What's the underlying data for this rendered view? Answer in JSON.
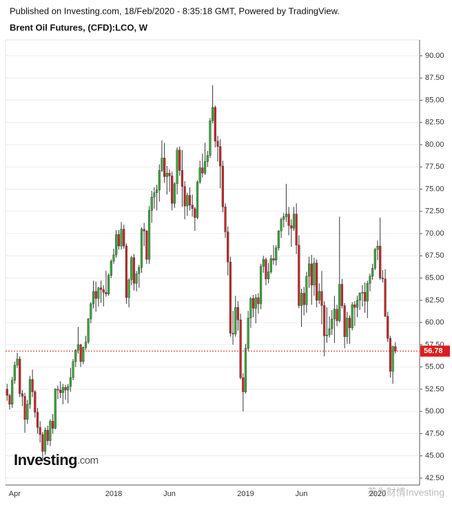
{
  "chart_data": {
    "type": "candlestick",
    "published": "Published on Investing.com, 18/Feb/2020 - 8:35:18 GMT, Powered by TradingView.",
    "title": "Brent Oil Futures, (CFD):LCO, W",
    "logo_text": "Investing",
    "logo_suffix": ".com",
    "watermark": "英为财情Investing",
    "up_color": "#3aa83a",
    "down_color": "#c62828",
    "last_price": 56.78,
    "last_price_color": "#e01b1b",
    "grid": true,
    "ylim": [
      41.72,
      91.78
    ],
    "yticks": [
      {
        "value": 42.5,
        "label": "42.50"
      },
      {
        "value": 45,
        "label": "45.00"
      },
      {
        "value": 47.5,
        "label": "47.50"
      },
      {
        "value": 50,
        "label": "50.00"
      },
      {
        "value": 52.5,
        "label": "52.50"
      },
      {
        "value": 55,
        "label": "55.00"
      },
      {
        "value": 57.5,
        "label": "57.50"
      },
      {
        "value": 60,
        "label": "60.00"
      },
      {
        "value": 62.5,
        "label": "62.50"
      },
      {
        "value": 65,
        "label": "65.00"
      },
      {
        "value": 67.5,
        "label": "67.50"
      },
      {
        "value": 70,
        "label": "70.00"
      },
      {
        "value": 72.5,
        "label": "72.50"
      },
      {
        "value": 75,
        "label": "75.00"
      },
      {
        "value": 77.5,
        "label": "77.50"
      },
      {
        "value": 80,
        "label": "80.00"
      },
      {
        "value": 82.5,
        "label": "82.50"
      },
      {
        "value": 85,
        "label": "85.00"
      },
      {
        "value": 87.5,
        "label": "87.50"
      },
      {
        "value": 90,
        "label": "90.00"
      }
    ],
    "categories": [
      null,
      null,
      null,
      "Apr",
      null,
      null,
      null,
      null,
      null,
      null,
      null,
      null,
      null,
      null,
      null,
      null,
      null,
      null,
      null,
      null,
      null,
      null,
      null,
      null,
      null,
      null,
      null,
      null,
      null,
      null,
      null,
      null,
      null,
      null,
      null,
      null,
      null,
      null,
      null,
      null,
      null,
      null,
      "2018",
      null,
      null,
      null,
      null,
      null,
      null,
      null,
      null,
      null,
      null,
      null,
      null,
      null,
      null,
      null,
      null,
      null,
      null,
      null,
      null,
      null,
      "Jun",
      null,
      null,
      null,
      null,
      null,
      null,
      null,
      null,
      null,
      null,
      null,
      null,
      null,
      null,
      null,
      null,
      null,
      null,
      null,
      null,
      null,
      null,
      null,
      null,
      null,
      null,
      null,
      null,
      null,
      "2019",
      null,
      null,
      null,
      null,
      null,
      null,
      null,
      null,
      null,
      null,
      null,
      null,
      null,
      null,
      null,
      null,
      null,
      null,
      null,
      null,
      null,
      "Jun",
      null,
      null,
      null,
      null,
      null,
      null,
      null,
      null,
      null,
      null,
      null,
      null,
      null,
      null,
      null,
      null,
      null,
      null,
      null,
      null,
      null,
      null,
      null,
      null,
      null,
      null,
      null,
      null,
      null,
      "2020",
      null,
      null,
      null,
      null,
      null,
      null,
      null
    ],
    "candles": [
      [
        52.5,
        53.1,
        51.2,
        51.8
      ],
      [
        51.8,
        52.0,
        50.2,
        50.8
      ],
      [
        50.8,
        53.9,
        50.4,
        53.5
      ],
      [
        53.5,
        55.6,
        53.1,
        55.2
      ],
      [
        55.2,
        56.6,
        54.9,
        55.9
      ],
      [
        55.9,
        56.2,
        51.6,
        52.0
      ],
      [
        52.0,
        52.4,
        50.6,
        51.7
      ],
      [
        51.7,
        52.1,
        47.6,
        49.1
      ],
      [
        49.1,
        51.3,
        48.6,
        50.8
      ],
      [
        50.8,
        54.0,
        50.3,
        53.6
      ],
      [
        53.6,
        54.7,
        51.6,
        52.2
      ],
      [
        52.2,
        52.4,
        49.3,
        49.9
      ],
      [
        49.9,
        50.4,
        47.5,
        48.2
      ],
      [
        48.2,
        48.9,
        46.5,
        47.4
      ],
      [
        47.4,
        47.7,
        44.4,
        45.5
      ],
      [
        45.5,
        48.2,
        45.1,
        47.9
      ],
      [
        47.9,
        48.4,
        46.2,
        46.7
      ],
      [
        46.7,
        49.1,
        46.1,
        48.9
      ],
      [
        48.9,
        49.7,
        47.5,
        48.1
      ],
      [
        48.1,
        52.6,
        48.0,
        52.5
      ],
      [
        52.5,
        52.9,
        51.4,
        52.4
      ],
      [
        52.4,
        53.4,
        51.5,
        52.1
      ],
      [
        52.1,
        53.1,
        50.8,
        52.7
      ],
      [
        52.7,
        53.0,
        51.3,
        52.4
      ],
      [
        52.4,
        53.1,
        50.9,
        52.8
      ],
      [
        52.8,
        54.9,
        52.2,
        53.8
      ],
      [
        53.8,
        55.9,
        53.5,
        55.6
      ],
      [
        55.6,
        57.0,
        55.0,
        56.9
      ],
      [
        56.9,
        59.5,
        56.5,
        57.5
      ],
      [
        57.5,
        57.6,
        55.0,
        55.6
      ],
      [
        55.6,
        57.3,
        55.3,
        57.2
      ],
      [
        57.2,
        58.5,
        56.9,
        57.8
      ],
      [
        57.8,
        60.5,
        57.6,
        60.4
      ],
      [
        60.4,
        62.3,
        59.9,
        62.1
      ],
      [
        62.1,
        64.7,
        61.6,
        63.5
      ],
      [
        63.5,
        64.6,
        61.2,
        62.7
      ],
      [
        62.7,
        64.0,
        61.8,
        63.9
      ],
      [
        63.9,
        64.7,
        62.2,
        63.7
      ],
      [
        63.7,
        64.2,
        61.8,
        63.4
      ],
      [
        63.4,
        65.8,
        62.9,
        63.2
      ],
      [
        63.2,
        65.5,
        63.0,
        65.3
      ],
      [
        65.3,
        67.1,
        65.0,
        66.9
      ],
      [
        66.9,
        68.3,
        66.6,
        67.6
      ],
      [
        67.6,
        70.4,
        67.3,
        69.9
      ],
      [
        69.9,
        70.4,
        68.2,
        68.6
      ],
      [
        68.6,
        71.3,
        68.2,
        70.5
      ],
      [
        70.5,
        71.0,
        68.3,
        68.6
      ],
      [
        68.6,
        68.9,
        62.1,
        62.8
      ],
      [
        62.8,
        65.0,
        61.7,
        64.8
      ],
      [
        64.8,
        67.5,
        64.2,
        67.3
      ],
      [
        67.3,
        67.7,
        63.6,
        64.4
      ],
      [
        64.4,
        65.8,
        63.5,
        65.5
      ],
      [
        65.5,
        66.5,
        63.9,
        66.2
      ],
      [
        66.2,
        70.7,
        65.6,
        70.5
      ],
      [
        70.5,
        71.2,
        68.6,
        70.3
      ],
      [
        70.3,
        70.4,
        66.6,
        67.1
      ],
      [
        67.1,
        73.1,
        66.6,
        72.6
      ],
      [
        72.6,
        74.8,
        71.2,
        74.1
      ],
      [
        74.1,
        75.2,
        72.8,
        74.6
      ],
      [
        74.6,
        75.5,
        72.6,
        74.9
      ],
      [
        74.9,
        77.8,
        73.6,
        77.1
      ],
      [
        77.1,
        80.5,
        76.9,
        78.5
      ],
      [
        78.5,
        80.2,
        75.7,
        76.4
      ],
      [
        76.4,
        77.6,
        74.4,
        76.8
      ],
      [
        76.8,
        77.2,
        74.7,
        76.5
      ],
      [
        76.5,
        77.0,
        72.6,
        73.4
      ],
      [
        73.4,
        75.8,
        72.9,
        75.6
      ],
      [
        75.6,
        79.7,
        74.4,
        79.4
      ],
      [
        79.4,
        79.8,
        76.5,
        77.1
      ],
      [
        77.1,
        79.4,
        73.0,
        75.3
      ],
      [
        75.3,
        75.9,
        71.6,
        73.1
      ],
      [
        73.1,
        74.6,
        72.0,
        74.3
      ],
      [
        74.3,
        75.2,
        72.6,
        73.2
      ],
      [
        73.2,
        74.4,
        71.9,
        72.8
      ],
      [
        72.8,
        73.0,
        70.3,
        71.8
      ],
      [
        71.8,
        76.0,
        71.6,
        75.8
      ],
      [
        75.8,
        78.2,
        75.6,
        77.4
      ],
      [
        77.4,
        79.0,
        76.3,
        76.8
      ],
      [
        76.8,
        80.2,
        76.6,
        78.1
      ],
      [
        78.1,
        79.3,
        77.5,
        78.8
      ],
      [
        78.8,
        83.0,
        78.5,
        82.7
      ],
      [
        82.7,
        86.7,
        82.4,
        84.2
      ],
      [
        84.2,
        84.4,
        79.7,
        80.4
      ],
      [
        80.4,
        81.0,
        78.1,
        79.8
      ],
      [
        79.8,
        80.6,
        75.1,
        77.6
      ],
      [
        77.6,
        78.2,
        72.4,
        73.0
      ],
      [
        73.0,
        73.4,
        69.5,
        70.2
      ],
      [
        70.2,
        70.8,
        65.3,
        66.8
      ],
      [
        66.8,
        67.4,
        58.4,
        58.8
      ],
      [
        58.8,
        61.3,
        57.5,
        58.7
      ],
      [
        58.7,
        63.0,
        58.4,
        61.7
      ],
      [
        61.7,
        62.4,
        59.1,
        60.3
      ],
      [
        60.3,
        61.0,
        53.6,
        53.8
      ],
      [
        53.8,
        54.3,
        50.0,
        52.2
      ],
      [
        52.2,
        57.6,
        52.0,
        57.1
      ],
      [
        57.1,
        61.3,
        56.8,
        60.5
      ],
      [
        60.5,
        62.9,
        59.4,
        62.7
      ],
      [
        62.7,
        63.1,
        60.6,
        61.6
      ],
      [
        61.6,
        63.2,
        59.9,
        62.8
      ],
      [
        62.8,
        63.3,
        61.0,
        62.1
      ],
      [
        62.1,
        66.6,
        61.5,
        66.3
      ],
      [
        66.3,
        67.5,
        65.6,
        67.1
      ],
      [
        67.1,
        67.3,
        64.2,
        64.9
      ],
      [
        64.9,
        66.7,
        64.4,
        65.7
      ],
      [
        65.7,
        67.6,
        65.5,
        67.2
      ],
      [
        67.2,
        68.7,
        66.5,
        67.0
      ],
      [
        67.0,
        68.7,
        66.4,
        68.4
      ],
      [
        68.4,
        70.4,
        68.1,
        70.3
      ],
      [
        70.3,
        71.8,
        69.5,
        71.6
      ],
      [
        71.6,
        72.3,
        70.7,
        71.9
      ],
      [
        71.9,
        75.6,
        71.3,
        72.2
      ],
      [
        72.2,
        73.0,
        69.8,
        70.9
      ],
      [
        70.9,
        71.6,
        68.5,
        70.6
      ],
      [
        70.6,
        73.0,
        70.3,
        72.2
      ],
      [
        72.2,
        73.4,
        67.7,
        68.7
      ],
      [
        68.7,
        69.8,
        61.6,
        61.9
      ],
      [
        61.9,
        63.8,
        59.5,
        63.3
      ],
      [
        63.3,
        64.0,
        60.8,
        62.0
      ],
      [
        62.0,
        65.7,
        61.1,
        65.2
      ],
      [
        65.2,
        67.4,
        63.9,
        66.6
      ],
      [
        66.6,
        67.6,
        62.0,
        64.2
      ],
      [
        64.2,
        67.3,
        63.0,
        66.7
      ],
      [
        66.7,
        67.1,
        61.7,
        62.5
      ],
      [
        62.5,
        64.4,
        62.1,
        63.5
      ],
      [
        63.5,
        65.8,
        59.8,
        61.9
      ],
      [
        61.9,
        62.4,
        56.2,
        58.5
      ],
      [
        58.5,
        61.7,
        57.7,
        58.6
      ],
      [
        58.6,
        60.7,
        58.3,
        59.3
      ],
      [
        59.3,
        61.4,
        58.6,
        60.4
      ],
      [
        60.4,
        63.0,
        57.7,
        61.5
      ],
      [
        61.5,
        62.0,
        59.6,
        60.2
      ],
      [
        60.2,
        71.9,
        60.0,
        64.3
      ],
      [
        64.3,
        64.9,
        61.6,
        61.9
      ],
      [
        61.9,
        62.2,
        57.1,
        58.4
      ],
      [
        58.4,
        61.2,
        57.6,
        60.5
      ],
      [
        60.5,
        60.8,
        57.6,
        59.4
      ],
      [
        59.4,
        62.3,
        59.1,
        62.0
      ],
      [
        62.0,
        62.4,
        59.6,
        61.7
      ],
      [
        61.7,
        63.0,
        60.6,
        62.5
      ],
      [
        62.5,
        63.4,
        61.4,
        63.3
      ],
      [
        63.3,
        64.2,
        61.8,
        63.4
      ],
      [
        63.4,
        64.5,
        61.1,
        62.4
      ],
      [
        62.4,
        64.7,
        60.5,
        64.4
      ],
      [
        64.4,
        65.5,
        63.5,
        65.2
      ],
      [
        65.2,
        66.6,
        64.8,
        66.1
      ],
      [
        66.1,
        68.4,
        65.9,
        68.2
      ],
      [
        68.2,
        69.2,
        67.0,
        68.6
      ],
      [
        68.6,
        71.8,
        64.8,
        65.0
      ],
      [
        65.0,
        65.9,
        64.5,
        64.9
      ],
      [
        64.9,
        66.0,
        60.6,
        60.7
      ],
      [
        60.7,
        61.2,
        57.8,
        58.2
      ],
      [
        58.2,
        58.5,
        53.8,
        54.5
      ],
      [
        54.5,
        57.4,
        53.1,
        57.3
      ],
      [
        57.3,
        57.8,
        56.5,
        56.78
      ]
    ]
  }
}
